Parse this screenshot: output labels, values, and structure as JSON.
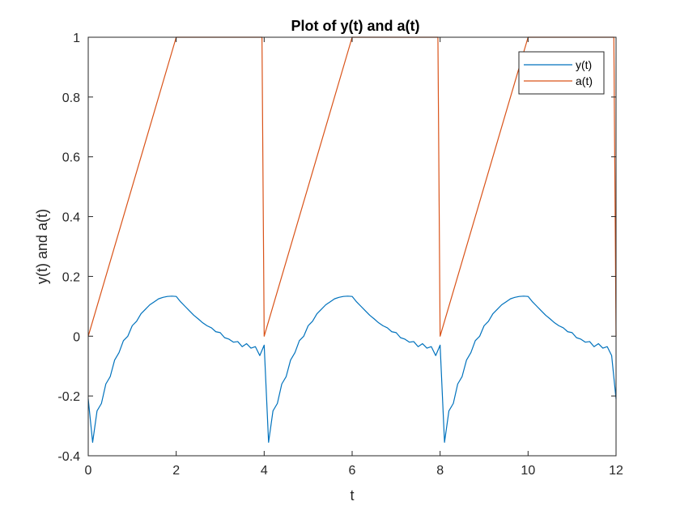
{
  "chart_data": {
    "type": "line",
    "title": "Plot of y(t) and a(t)",
    "xlabel": "t",
    "ylabel": "y(t) and a(t)",
    "xlim": [
      0,
      12
    ],
    "ylim": [
      -0.4,
      1
    ],
    "xticks": [
      0,
      2,
      4,
      6,
      8,
      10,
      12
    ],
    "xtick_labels": [
      "0",
      "2",
      "4",
      "6",
      "8",
      "10",
      "12"
    ],
    "yticks": [
      -0.4,
      -0.2,
      0,
      0.2,
      0.4,
      0.6,
      0.8,
      1
    ],
    "ytick_labels": [
      "-0.4",
      "-0.2",
      "0",
      "0.2",
      "0.4",
      "0.6",
      "0.8",
      "1"
    ],
    "grid": false,
    "legend_position": "top-right",
    "series": [
      {
        "name": "y(t)",
        "color": "#0072BD",
        "x": [
          0,
          0.1,
          0.2,
          0.3,
          0.4,
          0.5,
          0.6,
          0.7,
          0.8,
          0.9,
          1.0,
          1.1,
          1.2,
          1.3,
          1.4,
          1.5,
          1.6,
          1.7,
          1.8,
          1.9,
          2.0,
          2.1,
          2.2,
          2.3,
          2.4,
          2.5,
          2.6,
          2.7,
          2.8,
          2.9,
          3.0,
          3.1,
          3.2,
          3.3,
          3.4,
          3.5,
          3.6,
          3.7,
          3.8,
          3.9,
          4.0,
          4.1,
          4.2,
          4.3,
          4.4,
          4.5,
          4.6,
          4.7,
          4.8,
          4.9,
          5.0,
          5.1,
          5.2,
          5.3,
          5.4,
          5.5,
          5.6,
          5.7,
          5.8,
          5.9,
          6.0,
          6.1,
          6.2,
          6.3,
          6.4,
          6.5,
          6.6,
          6.7,
          6.8,
          6.9,
          7.0,
          7.1,
          7.2,
          7.3,
          7.4,
          7.5,
          7.6,
          7.7,
          7.8,
          7.9,
          8.0,
          8.1,
          8.2,
          8.3,
          8.4,
          8.5,
          8.6,
          8.7,
          8.8,
          8.9,
          9.0,
          9.1,
          9.2,
          9.3,
          9.4,
          9.5,
          9.6,
          9.7,
          9.8,
          9.9,
          10.0,
          10.1,
          10.2,
          10.3,
          10.4,
          10.5,
          10.6,
          10.7,
          10.8,
          10.9,
          11.0,
          11.1,
          11.2,
          11.3,
          11.4,
          11.5,
          11.6,
          11.7,
          11.8,
          11.9,
          12.0
        ],
        "y": [
          -0.21,
          -0.355,
          -0.25,
          -0.225,
          -0.16,
          -0.135,
          -0.08,
          -0.055,
          -0.015,
          0.0,
          0.035,
          0.05,
          0.075,
          0.09,
          0.105,
          0.115,
          0.125,
          0.13,
          0.133,
          0.134,
          0.133,
          0.115,
          0.1,
          0.085,
          0.07,
          0.058,
          0.045,
          0.035,
          0.028,
          0.015,
          0.012,
          -0.005,
          -0.01,
          -0.02,
          -0.018,
          -0.035,
          -0.025,
          -0.04,
          -0.035,
          -0.065,
          -0.03,
          -0.355,
          -0.25,
          -0.225,
          -0.16,
          -0.135,
          -0.08,
          -0.055,
          -0.015,
          0.0,
          0.035,
          0.05,
          0.075,
          0.09,
          0.105,
          0.115,
          0.125,
          0.13,
          0.133,
          0.134,
          0.133,
          0.115,
          0.1,
          0.085,
          0.07,
          0.058,
          0.045,
          0.035,
          0.028,
          0.015,
          0.012,
          -0.005,
          -0.01,
          -0.02,
          -0.018,
          -0.035,
          -0.025,
          -0.04,
          -0.035,
          -0.065,
          -0.03,
          -0.355,
          -0.25,
          -0.225,
          -0.16,
          -0.135,
          -0.08,
          -0.055,
          -0.015,
          0.0,
          0.035,
          0.05,
          0.075,
          0.09,
          0.105,
          0.115,
          0.125,
          0.13,
          0.133,
          0.134,
          0.133,
          0.115,
          0.1,
          0.085,
          0.07,
          0.058,
          0.045,
          0.035,
          0.028,
          0.015,
          0.012,
          -0.005,
          -0.01,
          -0.02,
          -0.018,
          -0.035,
          -0.025,
          -0.04,
          -0.035,
          -0.065,
          -0.21
        ]
      },
      {
        "name": "a(t)",
        "color": "#D95319",
        "x": [
          0,
          2,
          3.95,
          4.0,
          6.0,
          7.95,
          8.0,
          10.0,
          11.95,
          12.0
        ],
        "y": [
          0,
          1,
          1,
          0,
          1,
          1,
          0,
          1,
          1,
          0
        ]
      }
    ]
  }
}
